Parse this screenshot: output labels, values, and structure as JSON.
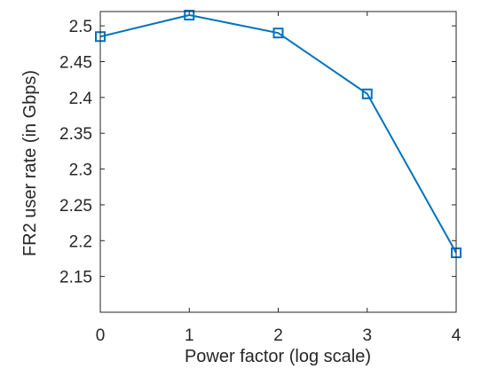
{
  "chart_data": {
    "type": "line",
    "title": "",
    "xlabel": "Power factor (log scale)",
    "ylabel": "FR2 user rate (in Gbps)",
    "xlim": [
      0,
      4
    ],
    "ylim": [
      2.1,
      2.52
    ],
    "x_ticks": [
      "0",
      "1",
      "2",
      "3",
      "4"
    ],
    "y_ticks": [
      "2.15",
      "2.2",
      "2.25",
      "2.3",
      "2.35",
      "2.4",
      "2.45",
      "2.5"
    ],
    "grid": false,
    "legend": "none",
    "marker": "square",
    "line_color": "#0072BD",
    "series": [
      {
        "x": [
          0,
          1,
          2,
          3,
          4
        ],
        "values": [
          2.485,
          2.515,
          2.49,
          2.405,
          2.183
        ]
      }
    ]
  }
}
